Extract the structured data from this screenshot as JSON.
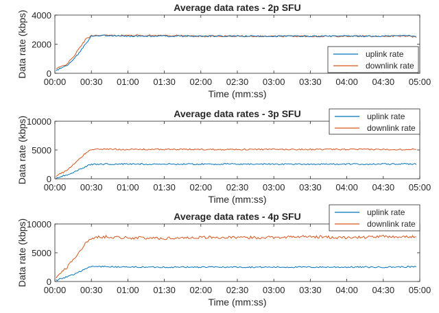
{
  "chart_data": [
    {
      "type": "line",
      "title": "Average data rates - 2p SFU",
      "xlabel": "Time (mm:ss)",
      "ylabel": "Data rate (kbps)",
      "x_ticks": [
        "00:00",
        "00:30",
        "01:00",
        "01:30",
        "02:00",
        "02:30",
        "03:00",
        "03:30",
        "04:00",
        "04:30",
        "05:00"
      ],
      "xlim": [
        0,
        300
      ],
      "ylim": [
        0,
        4000
      ],
      "y_ticks": [
        0,
        2000,
        4000
      ],
      "y_tick_labels": [
        "0",
        "2000",
        "4000"
      ],
      "legend_placement": "bottom-right",
      "colors": {
        "uplink rate": "#0072BD",
        "downlink rate": "#D95319"
      },
      "series": [
        {
          "name": "uplink rate",
          "x": [
            1,
            5,
            10,
            15,
            20,
            25,
            30,
            35,
            40,
            60,
            90,
            120,
            150,
            180,
            210,
            240,
            270,
            290,
            297
          ],
          "y": [
            200,
            350,
            550,
            900,
            1400,
            2000,
            2550,
            2600,
            2600,
            2550,
            2550,
            2550,
            2550,
            2550,
            2550,
            2550,
            2550,
            2600,
            2550
          ]
        },
        {
          "name": "downlink rate",
          "x": [
            1,
            5,
            10,
            15,
            20,
            25,
            30,
            35,
            40,
            60,
            90,
            120,
            150,
            180,
            210,
            240,
            270,
            290,
            297
          ],
          "y": [
            300,
            450,
            650,
            1100,
            1700,
            2300,
            2600,
            2600,
            2600,
            2600,
            2600,
            2550,
            2550,
            2550,
            2550,
            2550,
            2550,
            2550,
            2500
          ]
        }
      ]
    },
    {
      "type": "line",
      "title": "Average data rates - 3p SFU",
      "xlabel": "Time (mm:ss)",
      "ylabel": "Data rate (kbps)",
      "x_ticks": [
        "00:00",
        "00:30",
        "01:00",
        "01:30",
        "02:00",
        "02:30",
        "03:00",
        "03:30",
        "04:00",
        "04:30",
        "05:00"
      ],
      "xlim": [
        0,
        300
      ],
      "ylim": [
        0,
        10000
      ],
      "y_ticks": [
        0,
        5000,
        10000
      ],
      "y_tick_labels": [
        "0",
        "5000",
        "10000"
      ],
      "legend_placement": "top-right",
      "colors": {
        "uplink rate": "#0072BD",
        "downlink rate": "#D95319"
      },
      "series": [
        {
          "name": "uplink rate",
          "x": [
            1,
            5,
            10,
            15,
            20,
            25,
            30,
            35,
            40,
            60,
            90,
            120,
            150,
            180,
            210,
            240,
            270,
            290,
            297
          ],
          "y": [
            200,
            400,
            700,
            1100,
            1600,
            2100,
            2500,
            2550,
            2550,
            2550,
            2550,
            2550,
            2550,
            2550,
            2550,
            2550,
            2550,
            2550,
            2550
          ]
        },
        {
          "name": "downlink rate",
          "x": [
            1,
            5,
            10,
            15,
            20,
            25,
            30,
            35,
            40,
            60,
            90,
            120,
            150,
            180,
            210,
            240,
            270,
            290,
            297
          ],
          "y": [
            500,
            900,
            1500,
            2400,
            3400,
            4400,
            5100,
            5150,
            5150,
            5100,
            5100,
            5100,
            5100,
            5100,
            5100,
            5100,
            5100,
            5100,
            5150
          ]
        }
      ]
    },
    {
      "type": "line",
      "title": "Average data rates - 4p SFU",
      "xlabel": "Time (mm:ss)",
      "ylabel": "Data rate (kbps)",
      "x_ticks": [
        "00:00",
        "00:30",
        "01:00",
        "01:30",
        "02:00",
        "02:30",
        "03:00",
        "03:30",
        "04:00",
        "04:30",
        "05:00"
      ],
      "xlim": [
        0,
        300
      ],
      "ylim": [
        0,
        10000
      ],
      "y_ticks": [
        0,
        5000,
        10000
      ],
      "y_tick_labels": [
        "0",
        "5000",
        "10000"
      ],
      "legend_placement": "top-right",
      "colors": {
        "uplink rate": "#0072BD",
        "downlink rate": "#D95319"
      },
      "series": [
        {
          "name": "uplink rate",
          "x": [
            1,
            5,
            10,
            15,
            20,
            25,
            30,
            35,
            40,
            60,
            90,
            120,
            150,
            180,
            210,
            240,
            270,
            290,
            297
          ],
          "y": [
            200,
            500,
            800,
            1200,
            1700,
            2200,
            2600,
            2600,
            2600,
            2500,
            2500,
            2500,
            2500,
            2500,
            2500,
            2500,
            2500,
            2550,
            2550
          ]
        },
        {
          "name": "downlink rate",
          "x": [
            1,
            5,
            10,
            15,
            20,
            25,
            30,
            35,
            40,
            60,
            90,
            120,
            150,
            180,
            210,
            240,
            270,
            290,
            297
          ],
          "y": [
            800,
            1500,
            2500,
            3800,
            5200,
            6500,
            7500,
            7700,
            7800,
            7600,
            7500,
            7700,
            7600,
            7700,
            7800,
            7600,
            7800,
            7800,
            7700
          ]
        }
      ]
    }
  ]
}
